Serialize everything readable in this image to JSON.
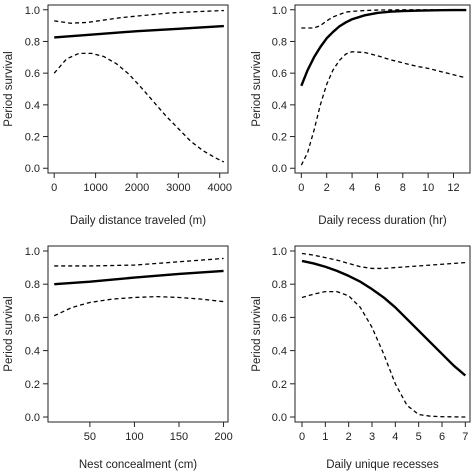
{
  "chart_data": [
    {
      "type": "line",
      "xlabel": "Daily distance traveled (m)",
      "ylabel": "Period survival",
      "xlim": [
        -150,
        4200
      ],
      "ylim": [
        -0.03,
        1.03
      ],
      "xticks": [
        0,
        1000,
        2000,
        3000,
        4000
      ],
      "yticks": [
        0.0,
        0.2,
        0.4,
        0.6,
        0.8,
        1.0
      ],
      "series": [
        {
          "style": "solid",
          "x": [
            0,
            1000,
            2000,
            3000,
            4100
          ],
          "y": [
            0.825,
            0.845,
            0.865,
            0.88,
            0.897
          ]
        },
        {
          "style": "dashed",
          "x": [
            0,
            400,
            800,
            1200,
            1600,
            2000,
            2400,
            2800,
            3200,
            3600,
            4100
          ],
          "y": [
            0.93,
            0.915,
            0.92,
            0.935,
            0.95,
            0.96,
            0.97,
            0.98,
            0.985,
            0.99,
            0.995
          ]
        },
        {
          "style": "dashed",
          "x": [
            0,
            300,
            600,
            900,
            1200,
            1500,
            1800,
            2100,
            2400,
            2700,
            3000,
            3300,
            3600,
            3900,
            4100
          ],
          "y": [
            0.6,
            0.69,
            0.725,
            0.725,
            0.705,
            0.66,
            0.595,
            0.51,
            0.42,
            0.33,
            0.25,
            0.17,
            0.11,
            0.065,
            0.04
          ]
        }
      ]
    },
    {
      "type": "line",
      "xlabel": "Daily recess duration (hr)",
      "ylabel": "Period survival",
      "xlim": [
        -0.5,
        13.3
      ],
      "ylim": [
        -0.03,
        1.03
      ],
      "xticks": [
        0,
        2,
        4,
        6,
        8,
        10,
        12
      ],
      "yticks": [
        0.0,
        0.2,
        0.4,
        0.6,
        0.8,
        1.0
      ],
      "series": [
        {
          "style": "solid",
          "x": [
            0,
            0.5,
            1,
            1.5,
            2,
            2.5,
            3,
            3.5,
            4,
            5,
            6,
            7,
            8,
            9,
            10,
            11,
            12,
            13
          ],
          "y": [
            0.52,
            0.62,
            0.7,
            0.765,
            0.82,
            0.86,
            0.895,
            0.92,
            0.94,
            0.965,
            0.98,
            0.988,
            0.992,
            0.994,
            0.996,
            0.997,
            0.998,
            0.998
          ]
        },
        {
          "style": "dashed",
          "x": [
            0,
            1,
            1.5,
            2,
            2.5,
            3,
            3.5,
            4,
            5,
            6,
            7,
            8,
            9,
            10,
            11,
            12,
            13
          ],
          "y": [
            0.885,
            0.885,
            0.9,
            0.93,
            0.955,
            0.97,
            0.985,
            0.99,
            0.995,
            0.998,
            0.999,
            1.0,
            1.0,
            1.0,
            1.0,
            1.0,
            1.0
          ]
        },
        {
          "style": "dashed",
          "x": [
            0,
            0.5,
            1,
            1.5,
            2,
            2.5,
            3,
            3.5,
            4,
            5,
            6,
            7,
            8,
            9,
            10,
            11,
            12,
            13
          ],
          "y": [
            0.02,
            0.1,
            0.24,
            0.4,
            0.53,
            0.62,
            0.68,
            0.72,
            0.735,
            0.73,
            0.71,
            0.685,
            0.665,
            0.645,
            0.63,
            0.61,
            0.59,
            0.57
          ]
        }
      ]
    },
    {
      "type": "line",
      "xlabel": "Nest concealment (cm)",
      "ylabel": "Period survival",
      "xlim": [
        3,
        205
      ],
      "ylim": [
        -0.03,
        1.03
      ],
      "xticks": [
        50,
        100,
        150,
        200
      ],
      "yticks": [
        0.0,
        0.2,
        0.4,
        0.6,
        0.8,
        1.0
      ],
      "series": [
        {
          "style": "solid",
          "x": [
            10,
            50,
            100,
            150,
            200
          ],
          "y": [
            0.8,
            0.815,
            0.84,
            0.862,
            0.88
          ]
        },
        {
          "style": "dashed",
          "x": [
            10,
            50,
            100,
            150,
            200
          ],
          "y": [
            0.91,
            0.91,
            0.915,
            0.935,
            0.955
          ]
        },
        {
          "style": "dashed",
          "x": [
            10,
            30,
            50,
            75,
            100,
            125,
            150,
            175,
            200
          ],
          "y": [
            0.61,
            0.66,
            0.69,
            0.71,
            0.72,
            0.725,
            0.72,
            0.71,
            0.695
          ]
        }
      ]
    },
    {
      "type": "line",
      "xlabel": "Daily unique recesses",
      "ylabel": "Period survival",
      "xlim": [
        -0.3,
        7.2
      ],
      "ylim": [
        -0.03,
        1.03
      ],
      "xticks": [
        0,
        1,
        2,
        3,
        4,
        5,
        6,
        7
      ],
      "yticks": [
        0.0,
        0.2,
        0.4,
        0.6,
        0.8,
        1.0
      ],
      "series": [
        {
          "style": "solid",
          "x": [
            0,
            0.5,
            1,
            1.5,
            2,
            2.5,
            3,
            3.5,
            4,
            4.5,
            5,
            5.5,
            6,
            6.5,
            7
          ],
          "y": [
            0.94,
            0.925,
            0.905,
            0.88,
            0.85,
            0.815,
            0.77,
            0.72,
            0.66,
            0.59,
            0.52,
            0.45,
            0.38,
            0.31,
            0.25
          ]
        },
        {
          "style": "dashed",
          "x": [
            0,
            0.5,
            1,
            1.5,
            2,
            2.5,
            3,
            3.5,
            4,
            5,
            6,
            7
          ],
          "y": [
            0.985,
            0.975,
            0.96,
            0.945,
            0.925,
            0.905,
            0.895,
            0.895,
            0.9,
            0.91,
            0.92,
            0.93
          ]
        },
        {
          "style": "dashed",
          "x": [
            0,
            0.5,
            1,
            1.5,
            2,
            2.5,
            3,
            3.5,
            4,
            4.5,
            5,
            5.5,
            6,
            6.5,
            7
          ],
          "y": [
            0.72,
            0.74,
            0.755,
            0.755,
            0.73,
            0.66,
            0.54,
            0.38,
            0.2,
            0.07,
            0.015,
            0.005,
            0.002,
            0.001,
            0.0
          ]
        }
      ]
    }
  ]
}
